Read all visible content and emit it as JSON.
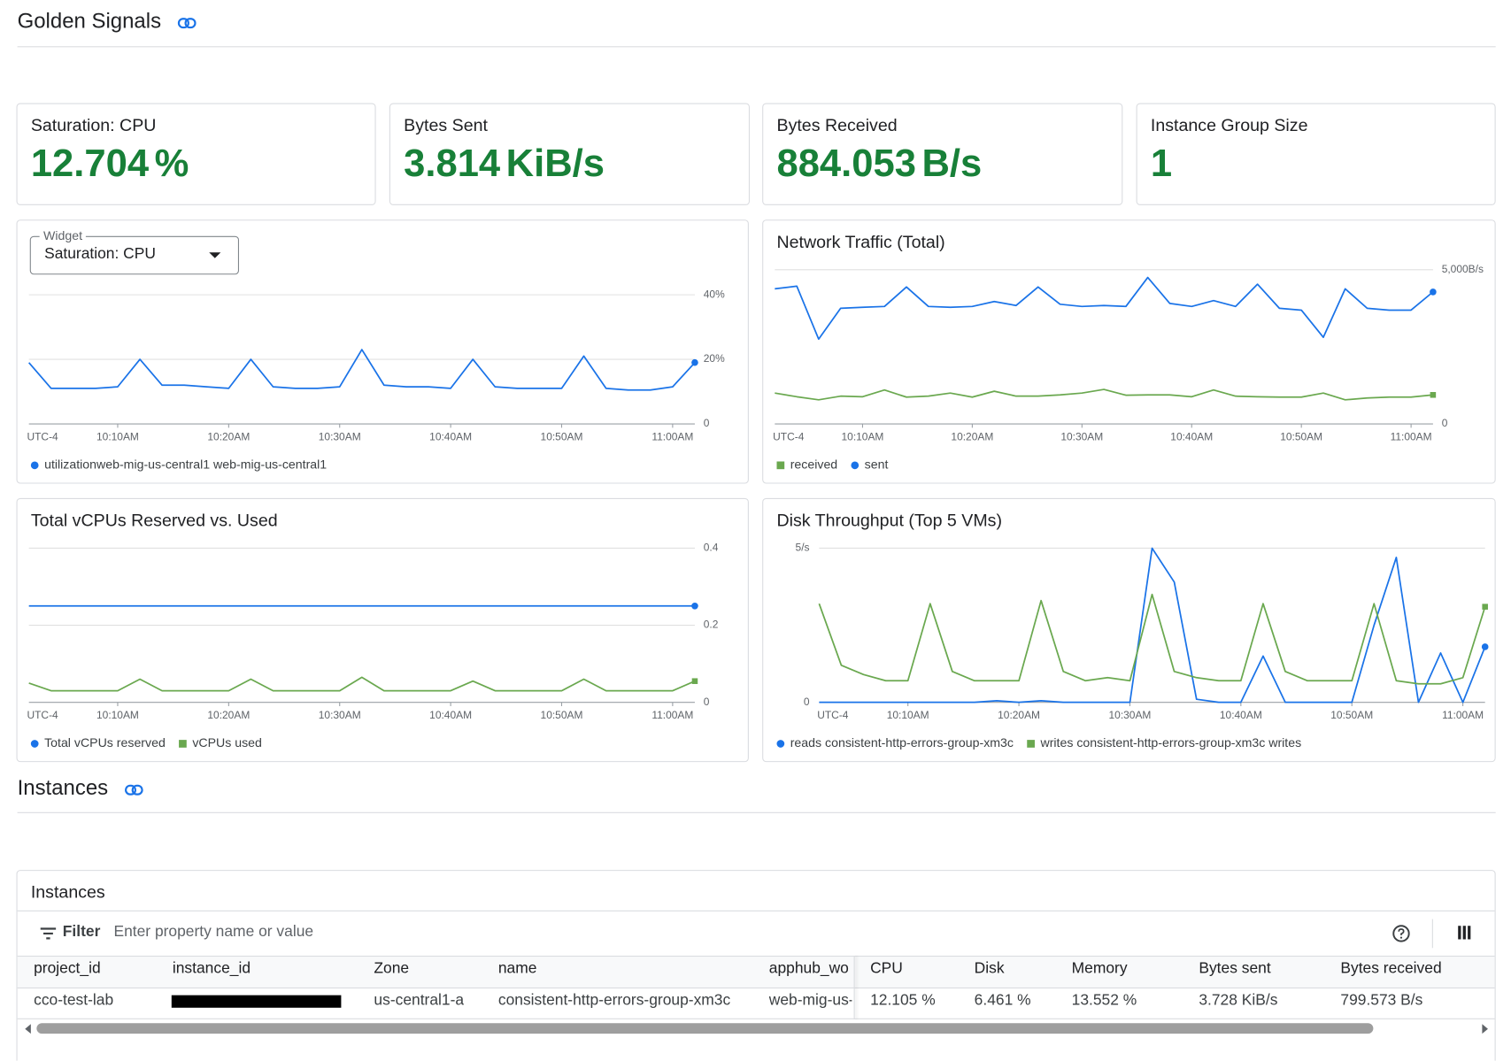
{
  "header": {
    "title": "Golden Signals"
  },
  "scorecards": [
    {
      "title": "Saturation: CPU",
      "value": 12.704,
      "unit": "%"
    },
    {
      "title": "Bytes Sent",
      "value": 3.814,
      "unit": "KiB/s"
    },
    {
      "title": "Bytes Received",
      "value": 884.053,
      "unit": "B/s"
    },
    {
      "title": "Instance Group Size",
      "value": 1
    }
  ],
  "widget_selector": {
    "label": "Widget",
    "selected": "Saturation: CPU"
  },
  "chart_data": [
    {
      "type": "line",
      "timezone": "UTC-4",
      "grid": true,
      "y_axis_side": "right",
      "x": [
        "10:02AM",
        "10:04AM",
        "10:06AM",
        "10:08AM",
        "10:10AM",
        "10:12AM",
        "10:14AM",
        "10:16AM",
        "10:18AM",
        "10:20AM",
        "10:22AM",
        "10:24AM",
        "10:26AM",
        "10:28AM",
        "10:30AM",
        "10:32AM",
        "10:34AM",
        "10:36AM",
        "10:38AM",
        "10:40AM",
        "10:42AM",
        "10:44AM",
        "10:46AM",
        "10:48AM",
        "10:50AM",
        "10:52AM",
        "10:54AM",
        "10:56AM",
        "10:58AM",
        "11:00AM",
        "11:02AM"
      ],
      "xlim": [
        "10:02AM",
        "11:02AM"
      ],
      "xticks": [
        "10:10AM",
        "10:20AM",
        "10:30AM",
        "10:40AM",
        "10:50AM",
        "11:00AM"
      ],
      "ylim": [
        0,
        40
      ],
      "yticks": [
        0,
        {
          "value": 20,
          "label": "20%"
        },
        {
          "value": 40,
          "label": "40%"
        }
      ],
      "series": [
        {
          "name": "utilizationweb-mig-us-central1 web-mig-us-central1",
          "color": "#1a73e8",
          "marker": "circle",
          "values": [
            19,
            11,
            11,
            11,
            11.5,
            20,
            12,
            12,
            11.5,
            11,
            20,
            11.5,
            11,
            11,
            11.5,
            23,
            12,
            11.5,
            11.5,
            11,
            20,
            11.5,
            11,
            11,
            11,
            21,
            11,
            10.5,
            10.5,
            11.5,
            19
          ]
        }
      ]
    },
    {
      "type": "line",
      "title": "Network Traffic (Total)",
      "timezone": "UTC-4",
      "grid": true,
      "y_axis_side": "right",
      "x": [
        "10:02AM",
        "10:04AM",
        "10:06AM",
        "10:08AM",
        "10:10AM",
        "10:12AM",
        "10:14AM",
        "10:16AM",
        "10:18AM",
        "10:20AM",
        "10:22AM",
        "10:24AM",
        "10:26AM",
        "10:28AM",
        "10:30AM",
        "10:32AM",
        "10:34AM",
        "10:36AM",
        "10:38AM",
        "10:40AM",
        "10:42AM",
        "10:44AM",
        "10:46AM",
        "10:48AM",
        "10:50AM",
        "10:52AM",
        "10:54AM",
        "10:56AM",
        "10:58AM",
        "11:00AM",
        "11:02AM"
      ],
      "xlim": [
        "10:02AM",
        "11:02AM"
      ],
      "xticks": [
        "10:10AM",
        "10:20AM",
        "10:30AM",
        "10:40AM",
        "10:50AM",
        "11:00AM"
      ],
      "ylim": [
        0,
        5000
      ],
      "yticks": [
        0,
        {
          "value": 5000,
          "label": "5,000B/s"
        }
      ],
      "series": [
        {
          "name": "received",
          "color": "#6aa84f",
          "marker": "square",
          "values": [
            1000,
            880,
            780,
            900,
            880,
            1100,
            870,
            900,
            1000,
            870,
            1060,
            900,
            900,
            940,
            1000,
            1120,
            930,
            940,
            940,
            880,
            1100,
            900,
            880,
            870,
            870,
            1000,
            780,
            840,
            870,
            870,
            940
          ]
        },
        {
          "name": "sent",
          "color": "#1a73e8",
          "marker": "circle",
          "values": [
            4380,
            4470,
            2750,
            3750,
            3780,
            3810,
            4440,
            3810,
            3780,
            3810,
            3970,
            3840,
            4440,
            3880,
            3810,
            3840,
            3810,
            4750,
            3910,
            3810,
            4000,
            3810,
            4530,
            3750,
            3690,
            2810,
            4380,
            3750,
            3690,
            3690,
            4280
          ]
        }
      ]
    },
    {
      "type": "line",
      "title": "Total vCPUs Reserved vs. Used",
      "timezone": "UTC-4",
      "grid": true,
      "y_axis_side": "right",
      "x": [
        "10:02AM",
        "10:04AM",
        "10:06AM",
        "10:08AM",
        "10:10AM",
        "10:12AM",
        "10:14AM",
        "10:16AM",
        "10:18AM",
        "10:20AM",
        "10:22AM",
        "10:24AM",
        "10:26AM",
        "10:28AM",
        "10:30AM",
        "10:32AM",
        "10:34AM",
        "10:36AM",
        "10:38AM",
        "10:40AM",
        "10:42AM",
        "10:44AM",
        "10:46AM",
        "10:48AM",
        "10:50AM",
        "10:52AM",
        "10:54AM",
        "10:56AM",
        "10:58AM",
        "11:00AM",
        "11:02AM"
      ],
      "xlim": [
        "10:02AM",
        "11:02AM"
      ],
      "xticks": [
        "10:10AM",
        "10:20AM",
        "10:30AM",
        "10:40AM",
        "10:50AM",
        "11:00AM"
      ],
      "ylim": [
        0,
        0.4
      ],
      "yticks": [
        0,
        0.2,
        0.4
      ],
      "series": [
        {
          "name": "Total vCPUs reserved",
          "color": "#1a73e8",
          "marker": "circle",
          "values": [
            0.25,
            0.25,
            0.25,
            0.25,
            0.25,
            0.25,
            0.25,
            0.25,
            0.25,
            0.25,
            0.25,
            0.25,
            0.25,
            0.25,
            0.25,
            0.25,
            0.25,
            0.25,
            0.25,
            0.25,
            0.25,
            0.25,
            0.25,
            0.25,
            0.25,
            0.25,
            0.25,
            0.25,
            0.25,
            0.25,
            0.25
          ]
        },
        {
          "name": "vCPUs used",
          "color": "#6aa84f",
          "marker": "square",
          "values": [
            0.05,
            0.03,
            0.03,
            0.03,
            0.03,
            0.06,
            0.03,
            0.03,
            0.03,
            0.03,
            0.06,
            0.03,
            0.03,
            0.03,
            0.03,
            0.065,
            0.03,
            0.03,
            0.03,
            0.03,
            0.055,
            0.03,
            0.03,
            0.03,
            0.03,
            0.06,
            0.03,
            0.03,
            0.03,
            0.03,
            0.055
          ]
        }
      ]
    },
    {
      "type": "line",
      "title": "Disk Throughput (Top 5 VMs)",
      "timezone": "UTC-4",
      "grid": true,
      "y_axis_side": "left",
      "x": [
        "10:02AM",
        "10:04AM",
        "10:06AM",
        "10:08AM",
        "10:10AM",
        "10:12AM",
        "10:14AM",
        "10:16AM",
        "10:18AM",
        "10:20AM",
        "10:22AM",
        "10:24AM",
        "10:26AM",
        "10:28AM",
        "10:30AM",
        "10:32AM",
        "10:34AM",
        "10:36AM",
        "10:38AM",
        "10:40AM",
        "10:42AM",
        "10:44AM",
        "10:46AM",
        "10:48AM",
        "10:50AM",
        "10:52AM",
        "10:54AM",
        "10:56AM",
        "10:58AM",
        "11:00AM",
        "11:02AM"
      ],
      "xlim": [
        "10:02AM",
        "11:02AM"
      ],
      "xticks": [
        "10:10AM",
        "10:20AM",
        "10:30AM",
        "10:40AM",
        "10:50AM",
        "11:00AM"
      ],
      "ylim": [
        0,
        5
      ],
      "yticks": [
        0,
        {
          "value": 5,
          "label": "5/s"
        }
      ],
      "series": [
        {
          "name": "reads consistent-http-errors-group-xm3c",
          "color": "#1a73e8",
          "marker": "circle",
          "values": [
            0,
            0,
            0,
            0,
            0,
            0,
            0,
            0,
            0.05,
            0,
            0.05,
            0,
            0,
            0,
            0,
            5,
            3.9,
            0.1,
            0,
            0,
            1.5,
            0,
            0,
            0,
            0,
            2.5,
            4.7,
            0,
            1.6,
            0,
            1.8
          ]
        },
        {
          "name": "writes consistent-http-errors-group-xm3c writes",
          "color": "#6aa84f",
          "marker": "square",
          "values": [
            3.2,
            1.2,
            0.9,
            0.7,
            0.7,
            3.2,
            1.0,
            0.7,
            0.7,
            0.7,
            3.3,
            1.0,
            0.7,
            0.8,
            0.7,
            3.5,
            1.0,
            0.8,
            0.7,
            0.7,
            3.2,
            1.0,
            0.7,
            0.7,
            0.7,
            3.2,
            0.7,
            0.6,
            0.6,
            0.8,
            3.1
          ]
        }
      ]
    }
  ],
  "instances_section": {
    "title": "Instances"
  },
  "instances_table": {
    "title": "Instances",
    "filter_label": "Filter",
    "filter_placeholder": "Enter property name or value",
    "columns": [
      "project_id",
      "instance_id",
      "Zone",
      "name",
      "apphub_wo",
      "CPU",
      "Disk",
      "Memory",
      "Bytes sent",
      "Bytes received"
    ],
    "rows": [
      [
        "cco-test-lab",
        null,
        "us-central1-a",
        "consistent-http-errors-group-xm3c",
        "web-mig-us-",
        "12.105 %",
        "6.461 %",
        "13.552 %",
        "3.728 KiB/s",
        "799.573 B/s"
      ]
    ]
  }
}
